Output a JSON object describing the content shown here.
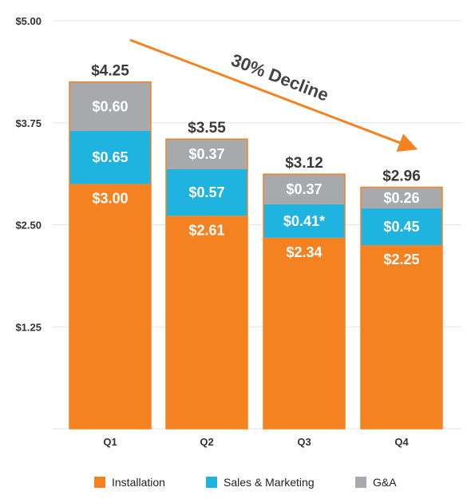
{
  "chart_data": {
    "type": "bar",
    "stacked": true,
    "categories": [
      "Q1",
      "Q2",
      "Q3",
      "Q4"
    ],
    "ylim": [
      0,
      5
    ],
    "yticks": [
      1.25,
      2.5,
      3.75,
      5.0
    ],
    "ytick_labels": [
      "$1.25",
      "$2.50",
      "$3.75",
      "$5.00"
    ],
    "grid": true,
    "legend_position": "bottom",
    "series": [
      {
        "name": "Installation",
        "color": "#f58220",
        "values": [
          3.0,
          2.61,
          2.34,
          2.25
        ],
        "labels": [
          "$3.00",
          "$2.61",
          "$2.34",
          "$2.25"
        ]
      },
      {
        "name": "Sales & Marketing",
        "color": "#1fb3e0",
        "values": [
          0.65,
          0.57,
          0.41,
          0.45
        ],
        "labels": [
          "$0.65",
          "$0.57",
          "$0.41*",
          "$0.45"
        ]
      },
      {
        "name": "G&A",
        "color": "#a7a9ac",
        "values": [
          0.6,
          0.37,
          0.37,
          0.26
        ],
        "labels": [
          "$0.60",
          "$0.37",
          "$0.37",
          "$0.26"
        ]
      }
    ],
    "totals": [
      4.25,
      3.55,
      3.12,
      2.96
    ],
    "total_labels": [
      "$4.25",
      "$3.55",
      "$3.12",
      "$2.96"
    ],
    "annotation": {
      "text": "30% Decline",
      "arrow_color": "#f58220"
    }
  }
}
